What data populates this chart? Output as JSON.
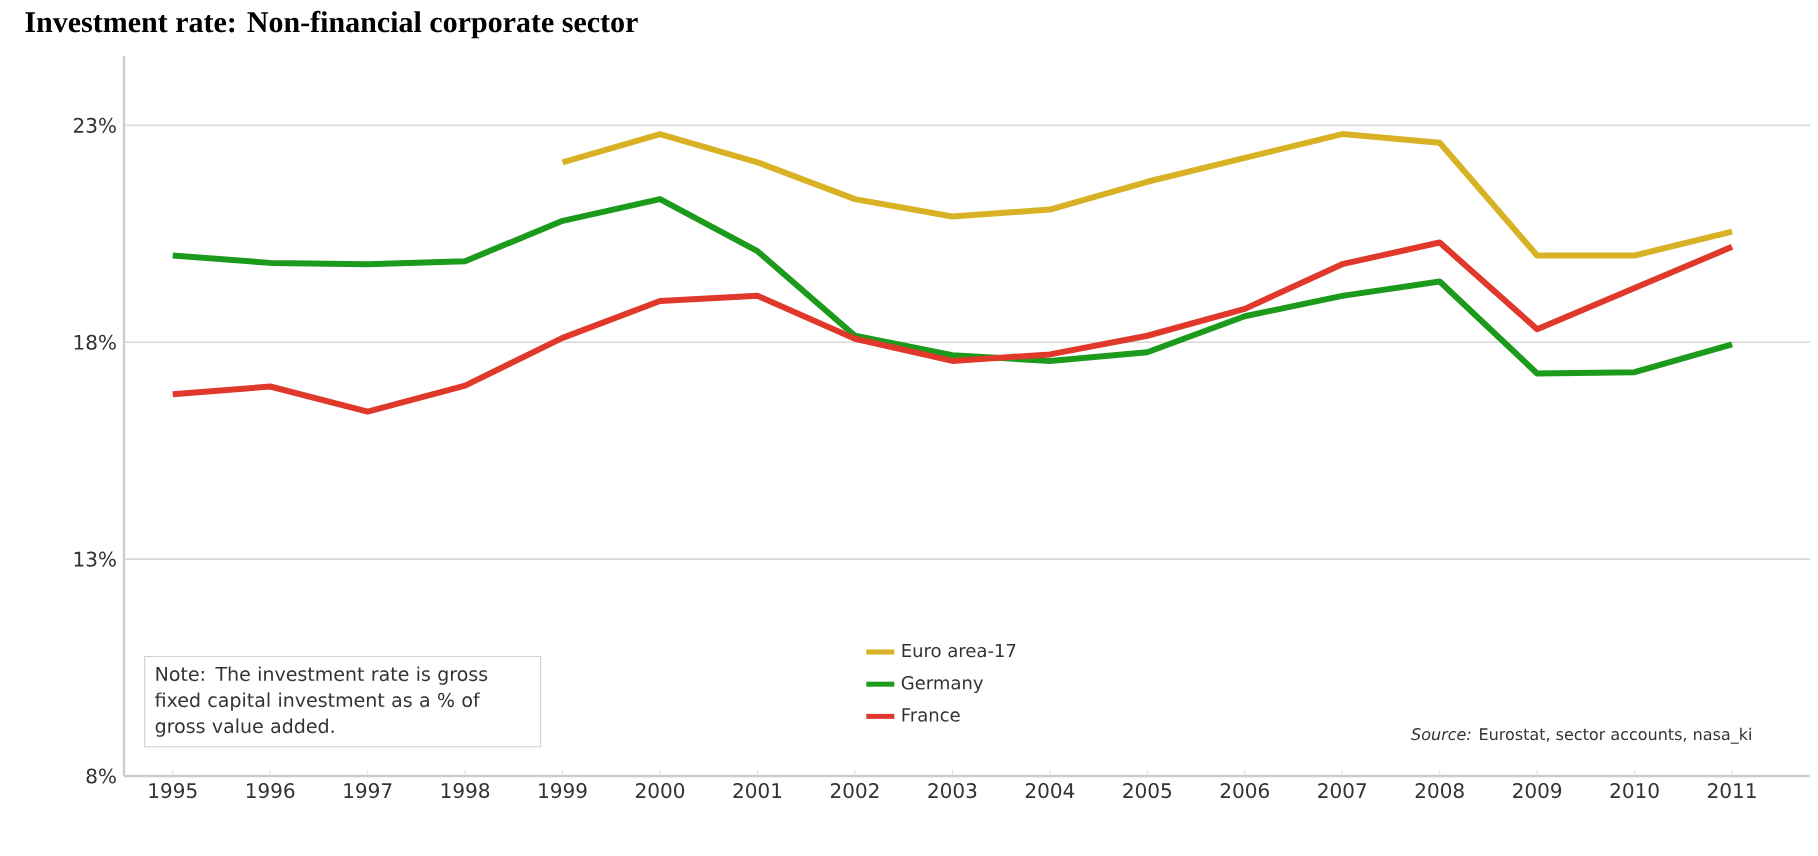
{
  "chart_data": {
    "type": "line",
    "title": "Investment rate: Non-financial corporate sector",
    "categories": [
      "1995",
      "1996",
      "1997",
      "1998",
      "1999",
      "2000",
      "2001",
      "2002",
      "2003",
      "2004",
      "2005",
      "2006",
      "2007",
      "2008",
      "2009",
      "2010",
      "2011"
    ],
    "series": [
      {
        "name": "Euro area-17",
        "color": "#d8b224",
        "values": [
          null,
          null,
          null,
          null,
          22.15,
          22.8,
          22.15,
          21.3,
          20.9,
          21.06,
          21.7,
          22.25,
          22.8,
          22.6,
          20.0,
          20.0,
          20.55
        ]
      },
      {
        "name": "Germany",
        "color": "#1c9a1c",
        "values": [
          20.0,
          19.83,
          19.8,
          19.87,
          20.8,
          21.3,
          20.1,
          18.15,
          17.7,
          17.57,
          17.77,
          18.6,
          19.07,
          19.4,
          17.28,
          17.31,
          17.95
        ]
      },
      {
        "name": "France",
        "color": "#e0392b",
        "values": [
          16.8,
          16.98,
          16.4,
          17.0,
          18.1,
          18.95,
          19.07,
          18.08,
          17.57,
          17.72,
          18.15,
          18.77,
          19.8,
          20.3,
          18.3,
          19.25,
          20.2
        ]
      }
    ],
    "ylim": [
      8,
      24.6
    ],
    "yticks": [
      {
        "value": 8,
        "label": "8%"
      },
      {
        "value": 13,
        "label": "13%"
      },
      {
        "value": 18,
        "label": "18%"
      },
      {
        "value": 23,
        "label": "23%"
      }
    ],
    "grid": "y",
    "legend": "bottom",
    "marker": "none",
    "line_style": "solid",
    "annotations": [
      "Note:  The investment rate is gross fixed capital investment as a % of gross value added.",
      "*Source:*  Eurostat, sector accounts, nasa_ki"
    ]
  }
}
